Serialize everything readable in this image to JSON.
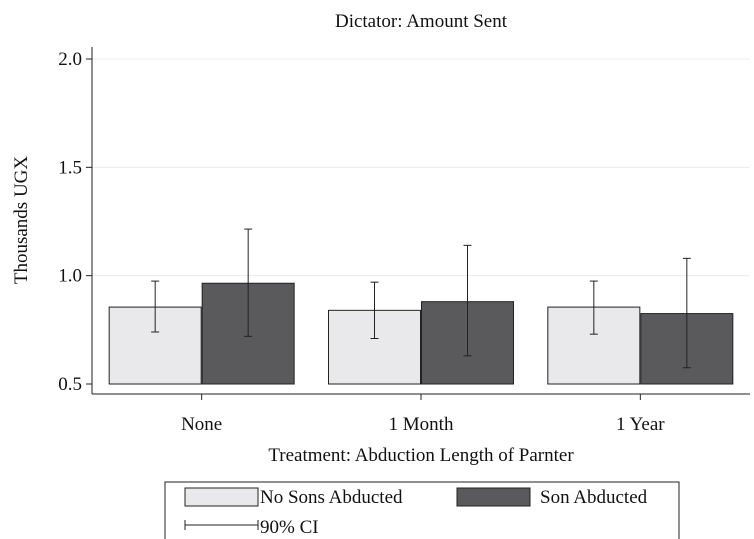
{
  "chart_data": {
    "type": "bar",
    "title": "Dictator: Amount Sent",
    "xlabel": "Treatment: Abduction Length of Parnter",
    "ylabel": "Thousands UGX",
    "categories": [
      "None",
      "1 Month",
      "1 Year"
    ],
    "ylim": [
      0.5,
      2.0
    ],
    "yticks": [
      "0.5",
      "1.0",
      "1.5",
      "2.0"
    ],
    "grid": true,
    "bar_base": 0.5,
    "series": [
      {
        "name": "No Sons Abducted",
        "color": "#e9e9ec",
        "values": [
          0.855,
          0.84,
          0.855
        ],
        "ci_low": [
          0.74,
          0.71,
          0.73
        ],
        "ci_high": [
          0.975,
          0.97,
          0.975
        ]
      },
      {
        "name": "Son Abducted",
        "color": "#5a5a5c",
        "values": [
          0.965,
          0.88,
          0.825
        ],
        "ci_low": [
          0.72,
          0.63,
          0.575
        ],
        "ci_high": [
          1.215,
          1.14,
          1.08
        ]
      }
    ],
    "legend": {
      "placement": "bottom",
      "ci_label": "90% CI"
    }
  }
}
